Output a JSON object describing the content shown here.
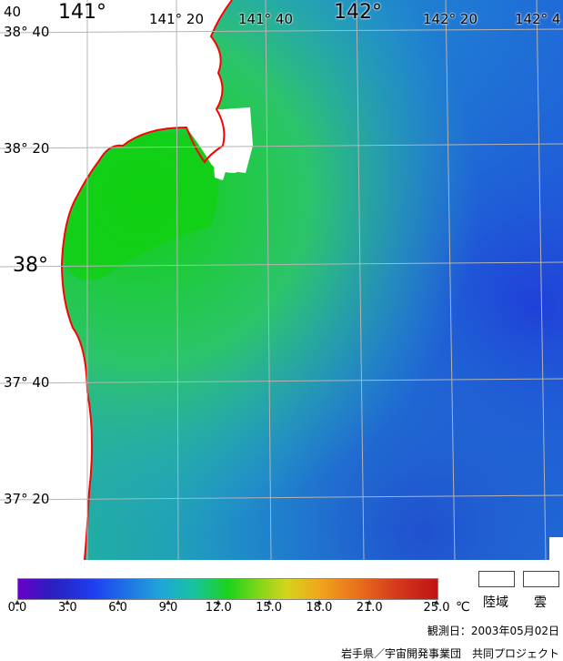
{
  "map": {
    "lon_labels_major": [
      "141°",
      "142°"
    ],
    "lon_labels_minor": [
      "141° 20",
      "141° 40",
      "142° 20",
      "142° 4"
    ],
    "lat_labels_major": [
      "38°"
    ],
    "lat_labels_minor": [
      "38° 40",
      "38° 20",
      "37° 40",
      "37° 20"
    ],
    "corner_label": "40",
    "colors": {
      "land_white": "#ffffff",
      "coast_red": "#ff0000",
      "grid": "#b4b4b4",
      "cloud_white": "#ffffff"
    }
  },
  "legend": {
    "ticks": [
      "0.0",
      "3.0",
      "6.0",
      "9.0",
      "12.0",
      "15.0",
      "18.0",
      "21.0",
      "25.0"
    ],
    "tick_values": [
      0,
      3,
      6,
      9,
      12,
      15,
      18,
      21,
      25
    ],
    "range": [
      0,
      25
    ],
    "unit": "℃",
    "land_label": "陸域",
    "cloud_label": "雲"
  },
  "observation_date": "観測日：2003年05月02日",
  "credit": "岩手県／宇宙開発事業団　共同プロジェクト"
}
